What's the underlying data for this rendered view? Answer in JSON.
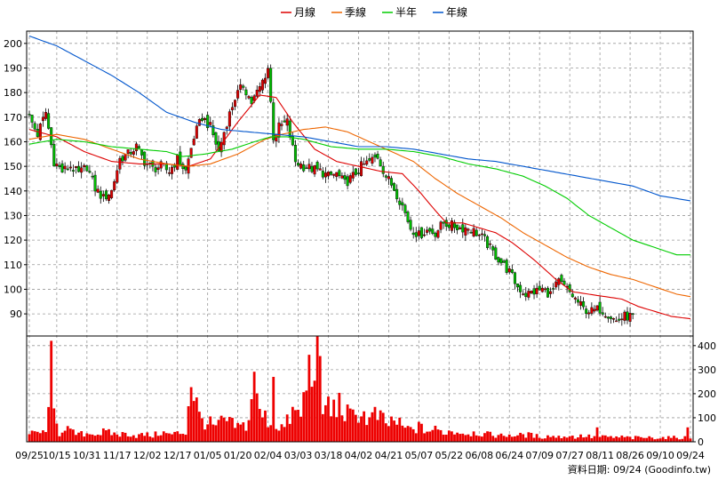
{
  "chart_data": {
    "type": "candlestick",
    "legend": {
      "placement": "top-center",
      "items": [
        {
          "name": "月線",
          "color": "#dd0000"
        },
        {
          "name": "季線",
          "color": "#ee6600"
        },
        {
          "name": "半年",
          "color": "#00cc00"
        },
        {
          "name": "年線",
          "color": "#0055cc"
        }
      ]
    },
    "price_axis": {
      "ylim": [
        81,
        205
      ],
      "ticks": [
        90,
        100,
        110,
        120,
        130,
        140,
        150,
        160,
        170,
        180,
        190,
        200
      ]
    },
    "volume_axis": {
      "ylim": [
        0,
        440
      ],
      "ticks": [
        0,
        100,
        200,
        300,
        400
      ]
    },
    "x_labels": [
      "09/25",
      "10/15",
      "10/31",
      "11/17",
      "12/02",
      "12/17",
      "01/05",
      "01/20",
      "02/04",
      "03/03",
      "03/18",
      "04/02",
      "04/21",
      "05/07",
      "05/22",
      "06/08",
      "06/24",
      "07/09",
      "07/27",
      "08/11",
      "08/26",
      "09/10",
      "09/24"
    ],
    "x_label_positions": [
      0,
      10,
      21,
      32,
      43,
      54,
      65,
      76,
      87,
      98,
      109,
      120,
      131,
      142,
      153,
      164,
      175,
      186,
      197,
      208,
      219,
      230,
      241
    ],
    "grid": true,
    "colors": {
      "up": "#dd0000",
      "down": "#00bb00",
      "volume": "#ee0000",
      "grid": "#999999"
    },
    "close_anchors": [
      [
        0,
        170
      ],
      [
        3,
        163
      ],
      [
        6,
        172
      ],
      [
        9,
        152
      ],
      [
        12,
        148
      ],
      [
        15,
        150
      ],
      [
        18,
        147
      ],
      [
        21,
        150
      ],
      [
        24,
        141
      ],
      [
        27,
        137
      ],
      [
        30,
        140
      ],
      [
        33,
        153
      ],
      [
        36,
        155
      ],
      [
        39,
        158
      ],
      [
        42,
        152
      ],
      [
        45,
        149
      ],
      [
        48,
        150
      ],
      [
        51,
        148
      ],
      [
        54,
        153
      ],
      [
        57,
        148
      ],
      [
        60,
        162
      ],
      [
        63,
        170
      ],
      [
        66,
        166
      ],
      [
        69,
        156
      ],
      [
        72,
        168
      ],
      [
        75,
        178
      ],
      [
        78,
        183
      ],
      [
        81,
        176
      ],
      [
        84,
        182
      ],
      [
        87,
        190
      ],
      [
        89,
        162
      ],
      [
        91,
        166
      ],
      [
        94,
        168
      ],
      [
        97,
        152
      ],
      [
        100,
        150
      ],
      [
        103,
        149
      ],
      [
        106,
        148
      ],
      [
        109,
        146
      ],
      [
        112,
        147
      ],
      [
        115,
        143
      ],
      [
        118,
        146
      ],
      [
        121,
        150
      ],
      [
        124,
        152
      ],
      [
        127,
        154
      ],
      [
        130,
        146
      ],
      [
        133,
        141
      ],
      [
        136,
        134
      ],
      [
        139,
        125
      ],
      [
        142,
        122
      ],
      [
        145,
        124
      ],
      [
        148,
        123
      ],
      [
        151,
        127
      ],
      [
        154,
        126
      ],
      [
        157,
        125
      ],
      [
        160,
        125
      ],
      [
        163,
        123
      ],
      [
        166,
        120
      ],
      [
        169,
        115
      ],
      [
        172,
        111
      ],
      [
        175,
        107
      ],
      [
        178,
        101
      ],
      [
        181,
        98
      ],
      [
        184,
        99
      ],
      [
        187,
        100
      ],
      [
        190,
        98
      ],
      [
        193,
        103
      ],
      [
        196,
        100
      ],
      [
        199,
        96
      ],
      [
        202,
        92
      ],
      [
        205,
        91
      ],
      [
        208,
        92
      ],
      [
        211,
        90
      ],
      [
        214,
        87
      ],
      [
        217,
        89
      ],
      [
        220,
        89
      ]
    ],
    "volume_anchors": [
      [
        0,
        30
      ],
      [
        3,
        40
      ],
      [
        6,
        35
      ],
      [
        8,
        420
      ],
      [
        9,
        100
      ],
      [
        11,
        35
      ],
      [
        13,
        70
      ],
      [
        15,
        40
      ],
      [
        18,
        30
      ],
      [
        21,
        35
      ],
      [
        24,
        30
      ],
      [
        27,
        40
      ],
      [
        30,
        35
      ],
      [
        33,
        30
      ],
      [
        36,
        35
      ],
      [
        39,
        25
      ],
      [
        42,
        30
      ],
      [
        45,
        25
      ],
      [
        48,
        40
      ],
      [
        51,
        30
      ],
      [
        54,
        35
      ],
      [
        57,
        40
      ],
      [
        59,
        270
      ],
      [
        62,
        100
      ],
      [
        65,
        80
      ],
      [
        68,
        60
      ],
      [
        71,
        90
      ],
      [
        74,
        70
      ],
      [
        77,
        60
      ],
      [
        80,
        80
      ],
      [
        82,
        330
      ],
      [
        83,
        160
      ],
      [
        84,
        120
      ],
      [
        87,
        90
      ],
      [
        90,
        70
      ],
      [
        93,
        60
      ],
      [
        96,
        120
      ],
      [
        99,
        110
      ],
      [
        102,
        300
      ],
      [
        103,
        280
      ],
      [
        104,
        420
      ],
      [
        105,
        380
      ],
      [
        106,
        250
      ],
      [
        108,
        180
      ],
      [
        110,
        120
      ],
      [
        112,
        160
      ],
      [
        114,
        140
      ],
      [
        116,
        110
      ],
      [
        118,
        100
      ],
      [
        120,
        130
      ],
      [
        122,
        110
      ],
      [
        124,
        90
      ],
      [
        126,
        110
      ],
      [
        128,
        100
      ],
      [
        130,
        70
      ],
      [
        133,
        90
      ],
      [
        136,
        60
      ],
      [
        139,
        50
      ],
      [
        142,
        60
      ],
      [
        145,
        45
      ],
      [
        148,
        50
      ],
      [
        151,
        40
      ],
      [
        154,
        45
      ],
      [
        157,
        40
      ],
      [
        160,
        35
      ],
      [
        163,
        40
      ],
      [
        166,
        30
      ],
      [
        169,
        30
      ],
      [
        172,
        25
      ],
      [
        175,
        30
      ],
      [
        178,
        25
      ],
      [
        181,
        30
      ],
      [
        184,
        25
      ],
      [
        187,
        20
      ],
      [
        190,
        25
      ],
      [
        193,
        20
      ],
      [
        196,
        25
      ],
      [
        199,
        20
      ],
      [
        202,
        25
      ],
      [
        205,
        20
      ],
      [
        208,
        20
      ],
      [
        211,
        20
      ],
      [
        214,
        18
      ],
      [
        217,
        20
      ],
      [
        220,
        15
      ]
    ],
    "volume_spikes": [
      [
        23,
        30
      ],
      [
        89,
        270
      ],
      [
        107,
        115
      ],
      [
        207,
        60
      ],
      [
        240,
        60
      ]
    ],
    "ma_lines": {
      "月線": [
        [
          0,
          165
        ],
        [
          10,
          162
        ],
        [
          20,
          156
        ],
        [
          30,
          152
        ],
        [
          40,
          151
        ],
        [
          50,
          151
        ],
        [
          58,
          150
        ],
        [
          66,
          153
        ],
        [
          76,
          168
        ],
        [
          84,
          179
        ],
        [
          90,
          178
        ],
        [
          96,
          168
        ],
        [
          104,
          157
        ],
        [
          112,
          152
        ],
        [
          120,
          150
        ],
        [
          128,
          148
        ],
        [
          136,
          147
        ],
        [
          142,
          140
        ],
        [
          148,
          132
        ],
        [
          152,
          127
        ],
        [
          158,
          127
        ],
        [
          164,
          125
        ],
        [
          170,
          123
        ],
        [
          176,
          119
        ],
        [
          184,
          112
        ],
        [
          192,
          104
        ],
        [
          198,
          99
        ],
        [
          204,
          98
        ],
        [
          210,
          97
        ],
        [
          216,
          96
        ],
        [
          222,
          93
        ],
        [
          228,
          91
        ],
        [
          234,
          89
        ],
        [
          241,
          88
        ]
      ],
      "季線": [
        [
          0,
          161
        ],
        [
          10,
          163
        ],
        [
          20,
          161
        ],
        [
          30,
          157
        ],
        [
          40,
          153
        ],
        [
          50,
          151
        ],
        [
          58,
          150
        ],
        [
          66,
          151
        ],
        [
          76,
          155
        ],
        [
          86,
          161
        ],
        [
          92,
          163
        ],
        [
          100,
          165
        ],
        [
          108,
          166
        ],
        [
          116,
          164
        ],
        [
          124,
          160
        ],
        [
          132,
          156
        ],
        [
          140,
          152
        ],
        [
          148,
          145
        ],
        [
          156,
          139
        ],
        [
          164,
          134
        ],
        [
          172,
          129
        ],
        [
          180,
          123
        ],
        [
          188,
          118
        ],
        [
          196,
          113
        ],
        [
          204,
          109
        ],
        [
          212,
          106
        ],
        [
          220,
          104
        ],
        [
          228,
          101
        ],
        [
          236,
          98
        ],
        [
          241,
          97
        ]
      ],
      "半年": [
        [
          0,
          159
        ],
        [
          10,
          161
        ],
        [
          20,
          160
        ],
        [
          30,
          158
        ],
        [
          40,
          157
        ],
        [
          50,
          156
        ],
        [
          56,
          154
        ],
        [
          64,
          155
        ],
        [
          74,
          157
        ],
        [
          82,
          160
        ],
        [
          88,
          162
        ],
        [
          94,
          162
        ],
        [
          100,
          161
        ],
        [
          110,
          158
        ],
        [
          120,
          157
        ],
        [
          130,
          157
        ],
        [
          140,
          156
        ],
        [
          150,
          154
        ],
        [
          160,
          151
        ],
        [
          170,
          149
        ],
        [
          180,
          146
        ],
        [
          188,
          142
        ],
        [
          196,
          137
        ],
        [
          204,
          130
        ],
        [
          212,
          125
        ],
        [
          220,
          120
        ],
        [
          228,
          117
        ],
        [
          236,
          114
        ],
        [
          241,
          114
        ]
      ],
      "年線": [
        [
          0,
          203
        ],
        [
          10,
          199
        ],
        [
          20,
          193
        ],
        [
          30,
          187
        ],
        [
          40,
          180
        ],
        [
          50,
          172
        ],
        [
          60,
          168
        ],
        [
          70,
          165
        ],
        [
          80,
          164
        ],
        [
          90,
          163
        ],
        [
          100,
          162
        ],
        [
          110,
          160
        ],
        [
          120,
          158
        ],
        [
          130,
          158
        ],
        [
          140,
          157
        ],
        [
          150,
          155
        ],
        [
          160,
          153
        ],
        [
          170,
          152
        ],
        [
          180,
          150
        ],
        [
          190,
          148
        ],
        [
          200,
          146
        ],
        [
          210,
          144
        ],
        [
          220,
          142
        ],
        [
          230,
          138
        ],
        [
          241,
          136
        ]
      ]
    },
    "footer": "資料日期: 09/24 (Goodinfo.tw)"
  }
}
